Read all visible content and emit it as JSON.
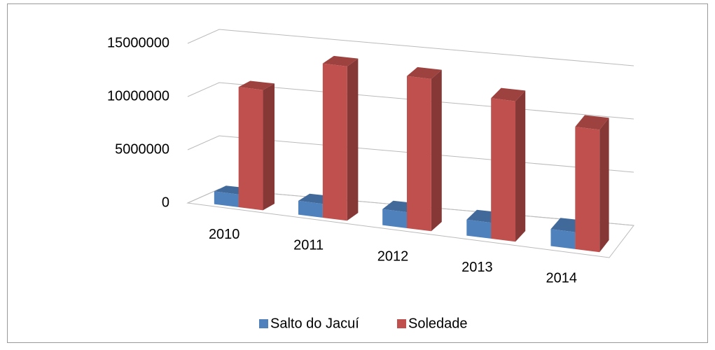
{
  "chart_data": {
    "type": "bar3d",
    "categories": [
      "2010",
      "2011",
      "2012",
      "2013",
      "2014"
    ],
    "series": [
      {
        "name": "Salto do Jacuí",
        "color": "#4f81bd",
        "values": [
          1200000,
          1300000,
          1500000,
          1500000,
          1600000
        ]
      },
      {
        "name": "Soledade",
        "color": "#c0504d",
        "values": [
          11300000,
          14500000,
          14300000,
          13200000,
          11500000
        ]
      }
    ],
    "ylim": [
      0,
      15000000
    ],
    "yticks": [
      0,
      5000000,
      10000000,
      15000000
    ],
    "grid": true,
    "legend": "bottom"
  }
}
